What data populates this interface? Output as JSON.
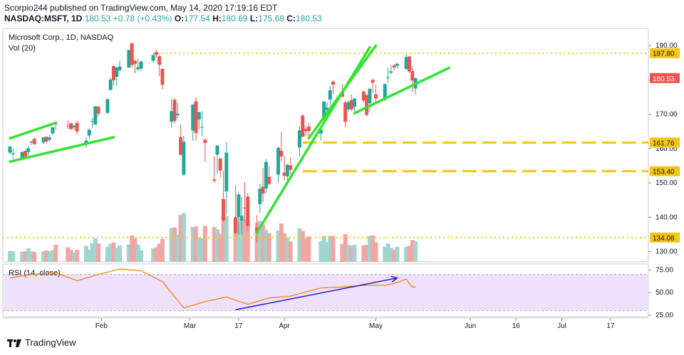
{
  "header": {
    "line1": "Scorpio244 published on TradingView.com, May 14, 2020 17:19:16 EDT",
    "symbol": "NASDAQ:MSFT, 1D",
    "last": "180.53",
    "change": "+0.78 (+0.43%)",
    "o_label": "O:",
    "o_val": "177.54",
    "h_label": "H:",
    "h_val": "180.69",
    "l_label": "L:",
    "l_val": "175.68",
    "c_label": "C:",
    "c_val": "180.53"
  },
  "footer": {
    "brand": "TradingView"
  },
  "colors": {
    "up": "#26a69a",
    "down": "#ef5350",
    "volUp": "#9fd4cf",
    "volDown": "#f2a6a4",
    "trend": "#33e233",
    "level": "#f5c518",
    "rsiLine": "#f57c00",
    "rsiArrow": "#1c1ccc",
    "rsiBand": "#efe0fb",
    "lastTag": "#ef5350"
  },
  "chart_data": [
    {
      "type": "candlestick",
      "title": "Microsoft Corp., 1D, NASDAQ",
      "volume_label": "Vol (20)",
      "ylim": [
        127,
        195
      ],
      "y_ticks": [
        130,
        140,
        150,
        160,
        170,
        180,
        190
      ],
      "x_ticks": [
        "Feb",
        "Mar",
        "17",
        "Apr",
        "May",
        "Jun",
        "16",
        "Jul",
        "17"
      ],
      "x_tick_dates": [
        "2020-02-01",
        "2020-03-01",
        "2020-03-17",
        "2020-04-01",
        "2020-05-01",
        "2020-06-01",
        "2020-06-16",
        "2020-07-01",
        "2020-07-17"
      ],
      "price_levels": [
        {
          "label": "187.80",
          "value": 187.8,
          "style": "dotted"
        },
        {
          "label": "161.76",
          "value": 161.76,
          "style": "dashed"
        },
        {
          "label": "153.40",
          "value": 153.4,
          "style": "dashed"
        },
        {
          "label": "134.08",
          "value": 134.08,
          "style": "dotted"
        }
      ],
      "last_price": {
        "label": "180.53",
        "value": 180.53
      },
      "candles": [
        {
          "date": "2020-01-02",
          "o": 158.8,
          "h": 160.7,
          "l": 158.3,
          "c": 160.6,
          "v": 22
        },
        {
          "date": "2020-01-03",
          "o": 158.3,
          "h": 159.9,
          "l": 157.0,
          "c": 158.6,
          "v": 21
        },
        {
          "date": "2020-01-06",
          "o": 157.1,
          "h": 159.1,
          "l": 156.5,
          "c": 159.0,
          "v": 20
        },
        {
          "date": "2020-01-07",
          "o": 159.3,
          "h": 159.7,
          "l": 157.4,
          "c": 157.6,
          "v": 21
        },
        {
          "date": "2020-01-08",
          "o": 158.9,
          "h": 160.8,
          "l": 157.9,
          "c": 160.1,
          "v": 27
        },
        {
          "date": "2020-01-09",
          "o": 161.8,
          "h": 162.2,
          "l": 161.0,
          "c": 162.1,
          "v": 21
        },
        {
          "date": "2020-01-10",
          "o": 162.8,
          "h": 163.2,
          "l": 161.1,
          "c": 161.3,
          "v": 20
        },
        {
          "date": "2020-01-13",
          "o": 161.8,
          "h": 163.3,
          "l": 161.3,
          "c": 163.3,
          "v": 21
        },
        {
          "date": "2020-01-14",
          "o": 163.4,
          "h": 163.6,
          "l": 161.7,
          "c": 162.1,
          "v": 23
        },
        {
          "date": "2020-01-15",
          "o": 162.6,
          "h": 163.9,
          "l": 162.0,
          "c": 163.2,
          "v": 21
        },
        {
          "date": "2020-01-16",
          "o": 164.4,
          "h": 166.2,
          "l": 164.0,
          "c": 166.2,
          "v": 23
        },
        {
          "date": "2020-01-17",
          "o": 167.4,
          "h": 167.5,
          "l": 165.4,
          "c": 167.1,
          "v": 34
        },
        {
          "date": "2020-01-21",
          "o": 166.7,
          "h": 168.2,
          "l": 165.7,
          "c": 166.5,
          "v": 29
        },
        {
          "date": "2020-01-22",
          "o": 167.4,
          "h": 167.5,
          "l": 165.4,
          "c": 165.7,
          "v": 24
        },
        {
          "date": "2020-01-23",
          "o": 166.2,
          "h": 166.8,
          "l": 165.3,
          "c": 166.7,
          "v": 19
        },
        {
          "date": "2020-01-24",
          "o": 167.5,
          "h": 168.0,
          "l": 164.0,
          "c": 165.0,
          "v": 24
        },
        {
          "date": "2020-01-27",
          "o": 161.2,
          "h": 163.4,
          "l": 160.2,
          "c": 162.3,
          "v": 32
        },
        {
          "date": "2020-01-28",
          "o": 163.8,
          "h": 165.8,
          "l": 163.0,
          "c": 165.5,
          "v": 24
        },
        {
          "date": "2020-01-29",
          "o": 167.8,
          "h": 169.0,
          "l": 166.0,
          "c": 168.0,
          "v": 37
        },
        {
          "date": "2020-01-30",
          "o": 167.0,
          "h": 172.4,
          "l": 166.9,
          "c": 172.3,
          "v": 47
        },
        {
          "date": "2020-01-31",
          "o": 172.2,
          "h": 172.4,
          "l": 169.5,
          "c": 170.2,
          "v": 37
        },
        {
          "date": "2020-02-03",
          "o": 170.4,
          "h": 174.5,
          "l": 170.1,
          "c": 174.4,
          "v": 30
        },
        {
          "date": "2020-02-04",
          "o": 177.1,
          "h": 180.6,
          "l": 176.9,
          "c": 180.1,
          "v": 36
        },
        {
          "date": "2020-02-05",
          "o": 184.0,
          "h": 184.2,
          "l": 178.4,
          "c": 179.9,
          "v": 39
        },
        {
          "date": "2020-02-06",
          "o": 180.9,
          "h": 183.8,
          "l": 178.3,
          "c": 183.6,
          "v": 28
        },
        {
          "date": "2020-02-07",
          "o": 182.8,
          "h": 185.6,
          "l": 182.6,
          "c": 183.9,
          "v": 33
        },
        {
          "date": "2020-02-10",
          "o": 183.6,
          "h": 188.8,
          "l": 183.5,
          "c": 188.7,
          "v": 35
        },
        {
          "date": "2020-02-11",
          "o": 190.7,
          "h": 190.7,
          "l": 183.6,
          "c": 184.4,
          "v": 53
        },
        {
          "date": "2020-02-12",
          "o": 185.6,
          "h": 185.9,
          "l": 181.9,
          "c": 184.7,
          "v": 47
        },
        {
          "date": "2020-02-13",
          "o": 183.1,
          "h": 186.2,
          "l": 182.6,
          "c": 183.7,
          "v": 35
        },
        {
          "date": "2020-02-14",
          "o": 183.3,
          "h": 185.4,
          "l": 182.7,
          "c": 185.4,
          "v": 23
        },
        {
          "date": "2020-02-18",
          "o": 185.6,
          "h": 187.7,
          "l": 185.0,
          "c": 187.2,
          "v": 27
        },
        {
          "date": "2020-02-19",
          "o": 188.1,
          "h": 188.8,
          "l": 186.5,
          "c": 187.3,
          "v": 29
        },
        {
          "date": "2020-02-20",
          "o": 186.9,
          "h": 187.2,
          "l": 181.1,
          "c": 184.4,
          "v": 36
        },
        {
          "date": "2020-02-21",
          "o": 183.2,
          "h": 183.5,
          "l": 177.3,
          "c": 178.6,
          "v": 46
        },
        {
          "date": "2020-02-24",
          "o": 167.8,
          "h": 174.6,
          "l": 166.1,
          "c": 170.9,
          "v": 68
        },
        {
          "date": "2020-02-25",
          "o": 174.2,
          "h": 174.8,
          "l": 167.3,
          "c": 168.1,
          "v": 69
        },
        {
          "date": "2020-02-26",
          "o": 169.7,
          "h": 173.3,
          "l": 168.8,
          "c": 170.2,
          "v": 55
        },
        {
          "date": "2020-02-27",
          "o": 163.3,
          "h": 167.0,
          "l": 157.9,
          "c": 158.2,
          "v": 94
        },
        {
          "date": "2020-02-28",
          "o": 152.4,
          "h": 163.7,
          "l": 152.0,
          "c": 162.0,
          "v": 98
        },
        {
          "date": "2020-03-02",
          "o": 165.3,
          "h": 172.9,
          "l": 162.3,
          "c": 172.8,
          "v": 70
        },
        {
          "date": "2020-03-03",
          "o": 173.8,
          "h": 175.0,
          "l": 162.3,
          "c": 164.5,
          "v": 71
        },
        {
          "date": "2020-03-04",
          "o": 168.5,
          "h": 170.7,
          "l": 165.6,
          "c": 170.6,
          "v": 49
        },
        {
          "date": "2020-03-05",
          "o": 166.1,
          "h": 170.9,
          "l": 163.5,
          "c": 166.3,
          "v": 47
        },
        {
          "date": "2020-03-06",
          "o": 162.6,
          "h": 163.1,
          "l": 156.1,
          "c": 161.6,
          "v": 72
        },
        {
          "date": "2020-03-09",
          "o": 151.0,
          "h": 157.8,
          "l": 150.0,
          "c": 150.6,
          "v": 70
        },
        {
          "date": "2020-03-10",
          "o": 158.2,
          "h": 161.0,
          "l": 152.6,
          "c": 160.9,
          "v": 65
        },
        {
          "date": "2020-03-11",
          "o": 157.1,
          "h": 157.2,
          "l": 151.5,
          "c": 153.6,
          "v": 56
        },
        {
          "date": "2020-03-12",
          "o": 145.3,
          "h": 153.5,
          "l": 138.6,
          "c": 139.1,
          "v": 93
        },
        {
          "date": "2020-03-13",
          "o": 147.5,
          "h": 161.9,
          "l": 140.7,
          "c": 158.8,
          "v": 92
        },
        {
          "date": "2020-03-16",
          "o": 140.0,
          "h": 149.4,
          "l": 135.0,
          "c": 135.4,
          "v": 87
        },
        {
          "date": "2020-03-17",
          "o": 140.0,
          "h": 147.5,
          "l": 135.0,
          "c": 146.6,
          "v": 81
        },
        {
          "date": "2020-03-18",
          "o": 139.0,
          "h": 146.0,
          "l": 135.0,
          "c": 140.4,
          "v": 85
        },
        {
          "date": "2020-03-19",
          "o": 142.8,
          "h": 150.2,
          "l": 139.0,
          "c": 142.7,
          "v": 85
        },
        {
          "date": "2020-03-20",
          "o": 146.0,
          "h": 147.1,
          "l": 135.9,
          "c": 137.4,
          "v": 84
        },
        {
          "date": "2020-03-23",
          "o": 137.0,
          "h": 140.6,
          "l": 132.5,
          "c": 135.9,
          "v": 78
        },
        {
          "date": "2020-03-24",
          "o": 143.8,
          "h": 149.6,
          "l": 141.3,
          "c": 148.3,
          "v": 82
        },
        {
          "date": "2020-03-25",
          "o": 148.9,
          "h": 154.3,
          "l": 144.4,
          "c": 146.9,
          "v": 75
        },
        {
          "date": "2020-03-26",
          "o": 148.4,
          "h": 157.0,
          "l": 147.0,
          "c": 156.1,
          "v": 64
        },
        {
          "date": "2020-03-27",
          "o": 151.8,
          "h": 154.9,
          "l": 149.2,
          "c": 149.7,
          "v": 57
        },
        {
          "date": "2020-03-30",
          "o": 152.4,
          "h": 160.6,
          "l": 150.0,
          "c": 160.2,
          "v": 63
        },
        {
          "date": "2020-03-31",
          "o": 159.4,
          "h": 164.8,
          "l": 156.3,
          "c": 157.7,
          "v": 77
        },
        {
          "date": "2020-04-01",
          "o": 153.0,
          "h": 157.8,
          "l": 150.8,
          "c": 152.1,
          "v": 57
        },
        {
          "date": "2020-04-02",
          "o": 151.9,
          "h": 155.5,
          "l": 150.4,
          "c": 155.3,
          "v": 49
        },
        {
          "date": "2020-04-03",
          "o": 155.1,
          "h": 157.4,
          "l": 152.5,
          "c": 153.8,
          "v": 41
        },
        {
          "date": "2020-04-06",
          "o": 160.3,
          "h": 166.5,
          "l": 157.6,
          "c": 165.3,
          "v": 67
        },
        {
          "date": "2020-04-07",
          "o": 169.6,
          "h": 170.0,
          "l": 163.3,
          "c": 163.5,
          "v": 62
        },
        {
          "date": "2020-04-08",
          "o": 165.7,
          "h": 166.7,
          "l": 163.5,
          "c": 165.1,
          "v": 48
        },
        {
          "date": "2020-04-09",
          "o": 166.4,
          "h": 167.4,
          "l": 163.1,
          "c": 165.1,
          "v": 51
        },
        {
          "date": "2020-04-13",
          "o": 164.4,
          "h": 165.6,
          "l": 162.3,
          "c": 165.5,
          "v": 41
        },
        {
          "date": "2020-04-14",
          "o": 169.0,
          "h": 173.8,
          "l": 168.0,
          "c": 173.7,
          "v": 52
        },
        {
          "date": "2020-04-15",
          "o": 171.2,
          "h": 173.6,
          "l": 169.6,
          "c": 171.9,
          "v": 40
        },
        {
          "date": "2020-04-16",
          "o": 174.3,
          "h": 178.4,
          "l": 172.6,
          "c": 177.0,
          "v": 52
        },
        {
          "date": "2020-04-17",
          "o": 179.5,
          "h": 180.0,
          "l": 175.9,
          "c": 178.6,
          "v": 52
        },
        {
          "date": "2020-04-20",
          "o": 176.6,
          "h": 178.8,
          "l": 174.9,
          "c": 175.1,
          "v": 36
        },
        {
          "date": "2020-04-21",
          "o": 173.5,
          "h": 173.7,
          "l": 166.1,
          "c": 167.8,
          "v": 56
        },
        {
          "date": "2020-04-22",
          "o": 171.4,
          "h": 174.0,
          "l": 170.8,
          "c": 173.5,
          "v": 34
        },
        {
          "date": "2020-04-23",
          "o": 174.1,
          "h": 175.7,
          "l": 170.9,
          "c": 171.4,
          "v": 32
        },
        {
          "date": "2020-04-24",
          "o": 172.1,
          "h": 174.6,
          "l": 170.3,
          "c": 174.6,
          "v": 34
        },
        {
          "date": "2020-04-27",
          "o": 176.6,
          "h": 176.9,
          "l": 173.3,
          "c": 174.0,
          "v": 33
        },
        {
          "date": "2020-04-28",
          "o": 175.6,
          "h": 175.7,
          "l": 169.4,
          "c": 169.8,
          "v": 34
        },
        {
          "date": "2020-04-29",
          "o": 173.2,
          "h": 177.7,
          "l": 170.8,
          "c": 177.4,
          "v": 52
        },
        {
          "date": "2020-04-30",
          "o": 180.0,
          "h": 180.4,
          "l": 176.2,
          "c": 179.2,
          "v": 53
        },
        {
          "date": "2020-05-01",
          "o": 175.8,
          "h": 178.6,
          "l": 173.8,
          "c": 174.6,
          "v": 39
        },
        {
          "date": "2020-05-04",
          "o": 174.5,
          "h": 179.0,
          "l": 173.8,
          "c": 178.8,
          "v": 30
        },
        {
          "date": "2020-05-05",
          "o": 180.6,
          "h": 183.6,
          "l": 179.1,
          "c": 180.8,
          "v": 37
        },
        {
          "date": "2020-05-06",
          "o": 182.1,
          "h": 184.2,
          "l": 181.6,
          "c": 182.5,
          "v": 28
        },
        {
          "date": "2020-05-07",
          "o": 184.2,
          "h": 184.6,
          "l": 182.6,
          "c": 183.6,
          "v": 24
        },
        {
          "date": "2020-05-08",
          "o": 184.1,
          "h": 185.0,
          "l": 183.4,
          "c": 184.7,
          "v": 30
        },
        {
          "date": "2020-05-11",
          "o": 183.2,
          "h": 187.5,
          "l": 182.9,
          "c": 186.7,
          "v": 30
        },
        {
          "date": "2020-05-12",
          "o": 186.8,
          "h": 187.0,
          "l": 182.0,
          "c": 182.5,
          "v": 32
        },
        {
          "date": "2020-05-13",
          "o": 182.6,
          "h": 184.0,
          "l": 176.5,
          "c": 179.8,
          "v": 44
        },
        {
          "date": "2020-05-14",
          "o": 177.5,
          "h": 180.7,
          "l": 175.7,
          "c": 180.5,
          "v": 41
        }
      ]
    },
    {
      "type": "line",
      "title": "RSI (14, close)",
      "ylim": [
        25,
        80
      ],
      "y_ticks": [
        25,
        50,
        75
      ],
      "band": [
        30,
        70
      ],
      "x": [
        "2020-01-02",
        "2020-01-09",
        "2020-01-17",
        "2020-01-24",
        "2020-01-31",
        "2020-02-07",
        "2020-02-14",
        "2020-02-21",
        "2020-02-28",
        "2020-03-06",
        "2020-03-13",
        "2020-03-20",
        "2020-03-27",
        "2020-04-03",
        "2020-04-13",
        "2020-04-20",
        "2020-04-27",
        "2020-05-04",
        "2020-05-08",
        "2020-05-11",
        "2020-05-12",
        "2020-05-13",
        "2020-05-14"
      ],
      "values": [
        66,
        70,
        72,
        63,
        70,
        76,
        74,
        62,
        33,
        40,
        45,
        37,
        44,
        46,
        55,
        56,
        58,
        58,
        61,
        65,
        60,
        56,
        56
      ],
      "trend_arrow": {
        "from": [
          "2020-03-16",
          31
        ],
        "to": [
          "2020-05-08",
          66
        ]
      }
    }
  ]
}
